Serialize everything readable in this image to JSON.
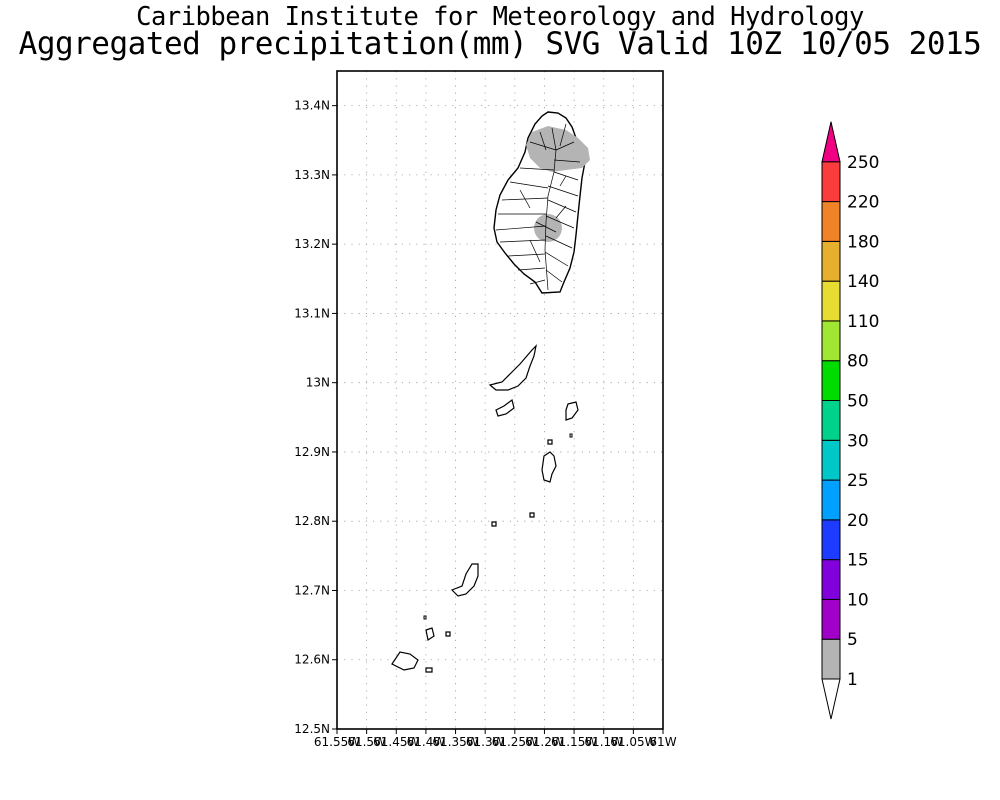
{
  "title": "Caribbean Institute for Meteorology and Hydrology",
  "subtitle": "Aggregated precipitation(mm) SVG Valid 10Z 10/05 2015",
  "map": {
    "lat_range": [
      12.5,
      13.45
    ],
    "lon_range": [
      -61.55,
      -61.0
    ],
    "lat_ticks": [
      {
        "value": 12.5,
        "label": "12.5N"
      },
      {
        "value": 12.6,
        "label": "12.6N"
      },
      {
        "value": 12.7,
        "label": "12.7N"
      },
      {
        "value": 12.8,
        "label": "12.8N"
      },
      {
        "value": 12.9,
        "label": "12.9N"
      },
      {
        "value": 13.0,
        "label": "13N"
      },
      {
        "value": 13.1,
        "label": "13.1N"
      },
      {
        "value": 13.2,
        "label": "13.2N"
      },
      {
        "value": 13.3,
        "label": "13.3N"
      },
      {
        "value": 13.4,
        "label": "13.4N"
      }
    ],
    "lon_ticks": [
      {
        "value": -61.55,
        "label": "61.55W"
      },
      {
        "value": -61.5,
        "label": "61.5W"
      },
      {
        "value": -61.45,
        "label": "61.45W"
      },
      {
        "value": -61.4,
        "label": "61.4W"
      },
      {
        "value": -61.35,
        "label": "61.35W"
      },
      {
        "value": -61.3,
        "label": "61.3W"
      },
      {
        "value": -61.25,
        "label": "61.25W"
      },
      {
        "value": -61.2,
        "label": "61.2W"
      },
      {
        "value": -61.15,
        "label": "61.15W"
      },
      {
        "value": -61.1,
        "label": "61.1W"
      },
      {
        "value": -61.05,
        "label": "61.05W"
      },
      {
        "value": -61.0,
        "label": "61W"
      }
    ],
    "grid": true
  },
  "colorbar": {
    "levels": [
      "1",
      "5",
      "10",
      "15",
      "20",
      "25",
      "30",
      "50",
      "80",
      "110",
      "140",
      "180",
      "220",
      "250"
    ],
    "colors": [
      "#b4b4b4",
      "#a000c8",
      "#8200dc",
      "#1e3cff",
      "#00a0ff",
      "#00c8c8",
      "#00d28c",
      "#00dc00",
      "#a0e632",
      "#e6dc32",
      "#e6af2d",
      "#f08228",
      "#fa3c3c",
      "#f00082"
    ]
  },
  "legend_colors": {
    "no_rain": "#ffffff",
    "outline": "#000000",
    "land_fill": "#ffffff"
  }
}
